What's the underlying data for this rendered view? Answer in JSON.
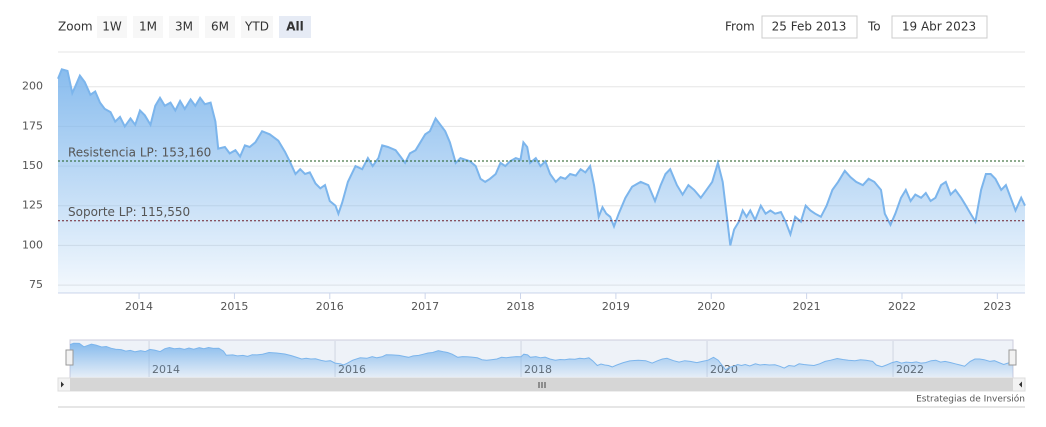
{
  "zoom": {
    "label": "Zoom",
    "buttons": [
      "1W",
      "1M",
      "3M",
      "6M",
      "YTD",
      "All"
    ],
    "selected_button": 5
  },
  "range": {
    "from_label": "From",
    "from": "25 Feb 2013",
    "to_label": "To",
    "to": "19 Abr 2023"
  },
  "credits": "Estrategias de Inversión",
  "chart_data": {
    "type": "area",
    "color": "#7cb5ec",
    "grid": true,
    "xlim": [
      2013.15,
      2023.29
    ],
    "xticks": [
      2014,
      2015,
      2016,
      2017,
      2018,
      2019,
      2020,
      2021,
      2022,
      2023
    ],
    "ylim": [
      70,
      220
    ],
    "yticks": [
      75,
      100,
      125,
      150,
      175,
      200
    ],
    "plot_lines": [
      {
        "value": 153.16,
        "label": "Resistencia LP: 153,160",
        "color": "#1d5a1d"
      },
      {
        "value": 115.55,
        "label": "Soporte LP: 115,550",
        "color": "#6e1f2a"
      }
    ],
    "navigator_xticks": [
      2014,
      2016,
      2018,
      2020,
      2022
    ],
    "x": [
      2013.15,
      2013.19,
      2013.25,
      2013.3,
      2013.33,
      2013.38,
      2013.43,
      2013.49,
      2013.54,
      2013.59,
      2013.64,
      2013.7,
      2013.75,
      2013.8,
      2013.85,
      2013.91,
      2013.96,
      2014.01,
      2014.06,
      2014.12,
      2014.17,
      2014.22,
      2014.27,
      2014.33,
      2014.38,
      2014.43,
      2014.48,
      2014.54,
      2014.59,
      2014.64,
      2014.69,
      2014.75,
      2014.8,
      2014.83,
      2014.9,
      2014.95,
      2015.01,
      2015.06,
      2015.11,
      2015.16,
      2015.22,
      2015.29,
      2015.37,
      2015.46,
      2015.53,
      2015.58,
      2015.64,
      2015.69,
      2015.74,
      2015.79,
      2015.85,
      2015.9,
      2015.95,
      2016.0,
      2016.06,
      2016.09,
      2016.13,
      2016.19,
      2016.27,
      2016.34,
      2016.4,
      2016.45,
      2016.51,
      2016.55,
      2016.61,
      2016.69,
      2016.74,
      2016.79,
      2016.84,
      2016.9,
      2016.95,
      2017.0,
      2017.05,
      2017.11,
      2017.16,
      2017.21,
      2017.26,
      2017.32,
      2017.37,
      2017.42,
      2017.47,
      2017.53,
      2017.58,
      2017.63,
      2017.68,
      2017.74,
      2017.79,
      2017.84,
      2017.89,
      2017.95,
      2018.0,
      2018.03,
      2018.07,
      2018.1,
      2018.16,
      2018.21,
      2018.26,
      2018.31,
      2018.37,
      2018.42,
      2018.47,
      2018.52,
      2018.58,
      2018.63,
      2018.68,
      2018.73,
      2018.77,
      2018.82,
      2018.86,
      2018.9,
      2018.94,
      2018.98,
      2019.03,
      2019.1,
      2019.17,
      2019.26,
      2019.34,
      2019.41,
      2019.47,
      2019.52,
      2019.57,
      2019.64,
      2019.7,
      2019.76,
      2019.82,
      2019.89,
      2019.95,
      2020.01,
      2020.07,
      2020.12,
      2020.16,
      2020.2,
      2020.24,
      2020.29,
      2020.33,
      2020.37,
      2020.41,
      2020.46,
      2020.52,
      2020.57,
      2020.62,
      2020.67,
      2020.73,
      2020.78,
      2020.83,
      2020.88,
      2020.94,
      2020.99,
      2021.04,
      2021.09,
      2021.15,
      2021.21,
      2021.27,
      2021.33,
      2021.4,
      2021.46,
      2021.52,
      2021.59,
      2021.65,
      2021.71,
      2021.78,
      2021.82,
      2021.88,
      2021.93,
      2021.99,
      2022.04,
      2022.09,
      2022.14,
      2022.2,
      2022.25,
      2022.3,
      2022.35,
      2022.41,
      2022.46,
      2022.51,
      2022.56,
      2022.62,
      2022.67,
      2022.72,
      2022.77,
      2022.83,
      2022.88,
      2022.93,
      2022.98,
      2023.04,
      2023.09,
      2023.14,
      2023.19,
      2023.25,
      2023.29
    ],
    "values": [
      205,
      211,
      210,
      196,
      200,
      207,
      203,
      195,
      197,
      190,
      186,
      184,
      178,
      181,
      175,
      180,
      176,
      185,
      182,
      176,
      188,
      193,
      188,
      190,
      185,
      191,
      186,
      192,
      188,
      193,
      189,
      190,
      178,
      161,
      162,
      158,
      160,
      156,
      163,
      162,
      165,
      172,
      170,
      166,
      159,
      153,
      145,
      148,
      145,
      146,
      139,
      136,
      138,
      128,
      125,
      120,
      127,
      140,
      150,
      148,
      155,
      150,
      155,
      163,
      162,
      160,
      156,
      152,
      158,
      160,
      165,
      170,
      172,
      180,
      176,
      172,
      165,
      152,
      155,
      154,
      153,
      150,
      142,
      140,
      142,
      145,
      152,
      150,
      153,
      155,
      154,
      165,
      162,
      152,
      155,
      150,
      153,
      145,
      140,
      143,
      142,
      145,
      144,
      148,
      146,
      150,
      138,
      118,
      124,
      120,
      118,
      112,
      120,
      130,
      137,
      140,
      138,
      128,
      138,
      145,
      148,
      138,
      132,
      138,
      135,
      130,
      135,
      140,
      152,
      140,
      120,
      100,
      110,
      115,
      122,
      118,
      122,
      116,
      125,
      120,
      122,
      120,
      121,
      115,
      107,
      118,
      115,
      125,
      122,
      120,
      118,
      125,
      135,
      140,
      147,
      143,
      140,
      138,
      142,
      140,
      135,
      120,
      113,
      120,
      130,
      135,
      128,
      132,
      130,
      133,
      128,
      130,
      138,
      140,
      132,
      135,
      130,
      125,
      120,
      115,
      135,
      145,
      145,
      142,
      135,
      138,
      130,
      122,
      130,
      125
    ]
  }
}
